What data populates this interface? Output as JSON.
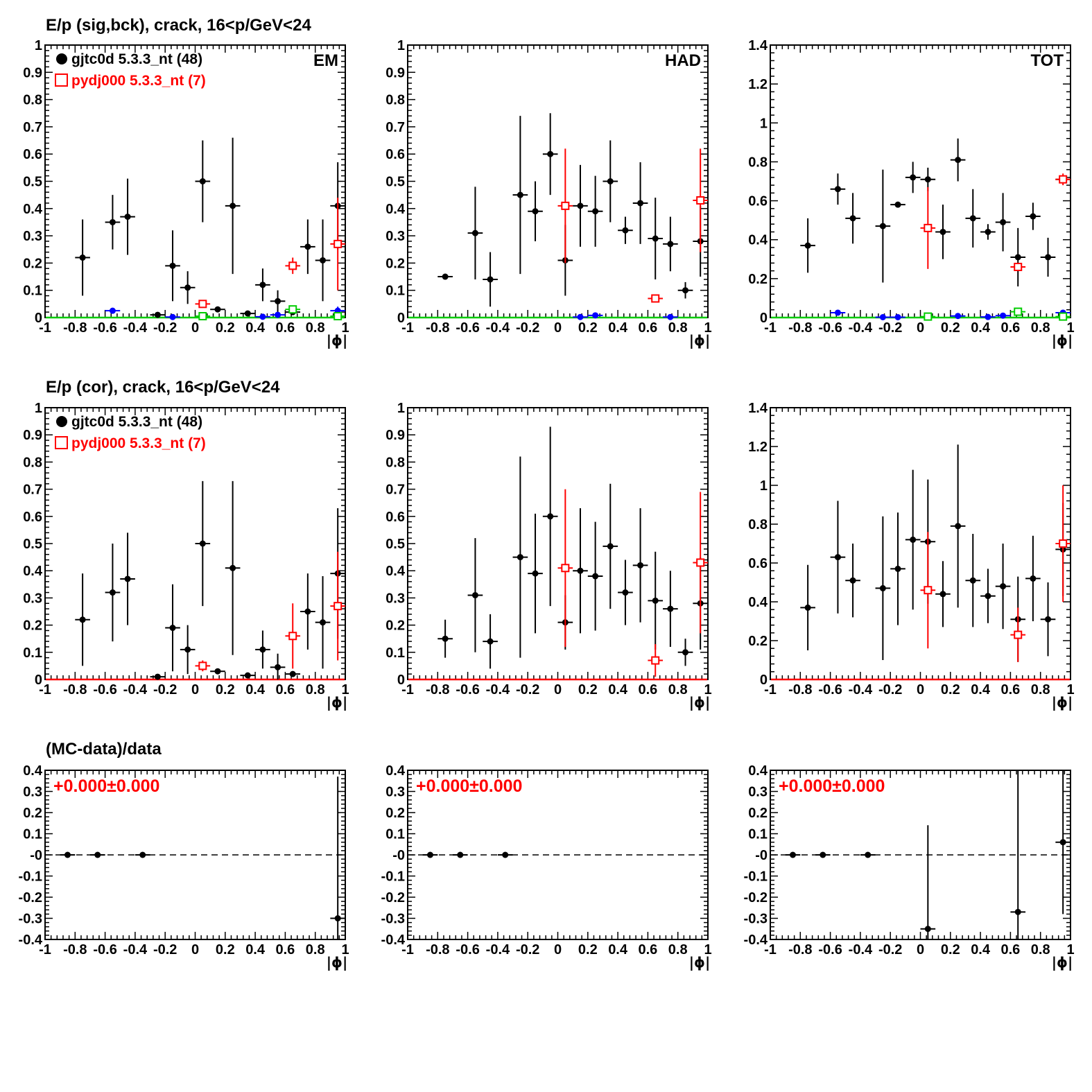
{
  "colors": {
    "data": "#000000",
    "mc": "#ff0000",
    "blue": "#0000ff",
    "green": "#00cc00"
  },
  "row_titles": [
    "E/p (sig,bck), crack, 16<p/GeV<24",
    "E/p (cor), crack, 16<p/GeV<24",
    "(MC-data)/data"
  ],
  "legend": {
    "data_label": "gjtc0d 5.3.3_nt (48)",
    "mc_label": "pydj000 5.3.3_nt (7)"
  },
  "panel_tags": [
    "EM",
    "HAD",
    "TOT"
  ],
  "ratio_texts": [
    "+0.000±0.000",
    "+0.000±0.000",
    "+0.000±0.000"
  ],
  "chart_data": [
    {
      "type": "scatter",
      "row": 0,
      "col": 0,
      "xlabel": "|ϕ|",
      "xlim": [
        -1,
        1
      ],
      "ylim": [
        0,
        1
      ],
      "yticks": [
        0,
        0.1,
        0.2,
        0.3,
        0.4,
        0.5,
        0.6,
        0.7,
        0.8,
        0.9,
        1
      ],
      "tag": "EM",
      "legend": true,
      "series": [
        {
          "name": "gjtc0d 5.3.3_nt (48)",
          "color": "#000000",
          "marker": "dot",
          "points": [
            [
              -0.75,
              0.22,
              0.14
            ],
            [
              -0.55,
              0.35,
              0.1
            ],
            [
              -0.45,
              0.37,
              0.14
            ],
            [
              -0.25,
              0.01,
              0
            ],
            [
              -0.15,
              0.19,
              0.13
            ],
            [
              -0.05,
              0.11,
              0.06
            ],
            [
              0.05,
              0.5,
              0.15
            ],
            [
              0.15,
              0.03,
              0.01
            ],
            [
              0.25,
              0.41,
              0.25
            ],
            [
              0.35,
              0.015,
              0
            ],
            [
              0.45,
              0.12,
              0.06
            ],
            [
              0.55,
              0.06,
              0.04
            ],
            [
              0.65,
              0.02,
              0
            ],
            [
              0.75,
              0.26,
              0.1
            ],
            [
              0.85,
              0.21,
              0.15
            ],
            [
              0.95,
              0.41,
              0.16
            ]
          ]
        },
        {
          "name": "pydj000 5.3.3_nt (7)",
          "color": "#ff0000",
          "marker": "square",
          "points": [
            [
              0.05,
              0.05,
              0
            ],
            [
              0.65,
              0.19,
              0.03
            ],
            [
              0.95,
              0.27,
              0.17
            ]
          ]
        },
        {
          "color": "#0000ff",
          "marker": "dot",
          "points": [
            [
              -0.55,
              0.025,
              0.01
            ],
            [
              -0.15,
              0.002,
              0
            ],
            [
              0.45,
              0.003,
              0
            ],
            [
              0.55,
              0.01,
              0
            ],
            [
              0.95,
              0.025,
              0.015
            ]
          ]
        },
        {
          "color": "#00cc00",
          "marker": "square",
          "points": [
            [
              0.05,
              0.005,
              0
            ],
            [
              0.65,
              0.03,
              0.01
            ],
            [
              0.95,
              0.005,
              0
            ]
          ]
        }
      ]
    },
    {
      "type": "scatter",
      "row": 0,
      "col": 1,
      "xlabel": "|ϕ|",
      "xlim": [
        -1,
        1
      ],
      "ylim": [
        0,
        1
      ],
      "yticks": [
        0,
        0.1,
        0.2,
        0.3,
        0.4,
        0.5,
        0.6,
        0.7,
        0.8,
        0.9,
        1
      ],
      "tag": "HAD",
      "legend": false,
      "series": [
        {
          "color": "#000000",
          "marker": "dot",
          "points": [
            [
              -0.75,
              0.15,
              0
            ],
            [
              -0.55,
              0.31,
              0.17
            ],
            [
              -0.45,
              0.14,
              0.1
            ],
            [
              -0.25,
              0.45,
              0.29
            ],
            [
              -0.15,
              0.39,
              0.11
            ],
            [
              -0.05,
              0.6,
              0.15
            ],
            [
              0.05,
              0.21,
              0.13
            ],
            [
              0.15,
              0.41,
              0.15
            ],
            [
              0.25,
              0.39,
              0.13
            ],
            [
              0.35,
              0.5,
              0.15
            ],
            [
              0.45,
              0.32,
              0.05
            ],
            [
              0.55,
              0.42,
              0.15
            ],
            [
              0.65,
              0.29,
              0.15
            ],
            [
              0.75,
              0.27,
              0.1
            ],
            [
              0.85,
              0.1,
              0.03
            ],
            [
              0.95,
              0.28,
              0.13
            ]
          ]
        },
        {
          "color": "#ff0000",
          "marker": "square",
          "points": [
            [
              0.05,
              0.41,
              0.21
            ],
            [
              0.65,
              0.07,
              0.01
            ],
            [
              0.95,
              0.43,
              0.19
            ]
          ]
        },
        {
          "color": "#0000ff",
          "marker": "dot",
          "points": [
            [
              0.15,
              0.002,
              0
            ],
            [
              0.25,
              0.008,
              0
            ],
            [
              0.75,
              0.002,
              0
            ]
          ]
        }
      ]
    },
    {
      "type": "scatter",
      "row": 0,
      "col": 2,
      "xlabel": "|ϕ|",
      "xlim": [
        -1,
        1
      ],
      "ylim": [
        0,
        1.4
      ],
      "yticks": [
        0,
        0.2,
        0.4,
        0.6,
        0.8,
        1,
        1.2,
        1.4
      ],
      "tag": "TOT",
      "legend": false,
      "series": [
        {
          "color": "#000000",
          "marker": "dot",
          "points": [
            [
              -0.75,
              0.37,
              0.14
            ],
            [
              -0.55,
              0.66,
              0.08
            ],
            [
              -0.45,
              0.51,
              0.13
            ],
            [
              -0.25,
              0.47,
              0.29
            ],
            [
              -0.15,
              0.58,
              0
            ],
            [
              -0.05,
              0.72,
              0.08
            ],
            [
              0.05,
              0.71,
              0.06
            ],
            [
              0.15,
              0.44,
              0.14
            ],
            [
              0.25,
              0.81,
              0.11
            ],
            [
              0.35,
              0.51,
              0.15
            ],
            [
              0.45,
              0.44,
              0.04
            ],
            [
              0.55,
              0.49,
              0.15
            ],
            [
              0.65,
              0.31,
              0.15
            ],
            [
              0.75,
              0.52,
              0.07
            ],
            [
              0.85,
              0.31,
              0.1
            ],
            [
              0.95,
              0.71,
              0.02
            ]
          ]
        },
        {
          "color": "#ff0000",
          "marker": "square",
          "points": [
            [
              0.05,
              0.46,
              0.21
            ],
            [
              0.65,
              0.26,
              0.02
            ],
            [
              0.95,
              0.71,
              0.03
            ]
          ]
        },
        {
          "color": "#0000ff",
          "marker": "dot",
          "points": [
            [
              -0.55,
              0.025,
              0
            ],
            [
              -0.25,
              0.002,
              0
            ],
            [
              -0.15,
              0.002,
              0
            ],
            [
              0.25,
              0.008,
              0
            ],
            [
              0.45,
              0.003,
              0
            ],
            [
              0.55,
              0.01,
              0
            ],
            [
              0.95,
              0.025,
              0.01
            ]
          ]
        },
        {
          "color": "#00cc00",
          "marker": "square",
          "points": [
            [
              0.05,
              0.005,
              0
            ],
            [
              0.65,
              0.03,
              0
            ],
            [
              0.95,
              0.005,
              0
            ]
          ]
        }
      ]
    },
    {
      "type": "scatter",
      "row": 1,
      "col": 0,
      "xlabel": "|ϕ|",
      "xlim": [
        -1,
        1
      ],
      "ylim": [
        0,
        1
      ],
      "yticks": [
        0,
        0.1,
        0.2,
        0.3,
        0.4,
        0.5,
        0.6,
        0.7,
        0.8,
        0.9,
        1
      ],
      "tag": "",
      "legend": true,
      "series": [
        {
          "name": "gjtc0d 5.3.3_nt (48)",
          "color": "#000000",
          "marker": "dot",
          "points": [
            [
              -0.75,
              0.22,
              0.17
            ],
            [
              -0.55,
              0.32,
              0.18
            ],
            [
              -0.45,
              0.37,
              0.17
            ],
            [
              -0.25,
              0.01,
              0
            ],
            [
              -0.15,
              0.19,
              0.16
            ],
            [
              -0.05,
              0.11,
              0.09
            ],
            [
              0.05,
              0.5,
              0.23
            ],
            [
              0.15,
              0.03,
              0.01
            ],
            [
              0.25,
              0.41,
              0.32
            ],
            [
              0.35,
              0.015,
              0
            ],
            [
              0.45,
              0.11,
              0.07
            ],
            [
              0.55,
              0.045,
              0.05
            ],
            [
              0.65,
              0.02,
              0
            ],
            [
              0.75,
              0.25,
              0.14
            ],
            [
              0.85,
              0.21,
              0.17
            ],
            [
              0.95,
              0.39,
              0.24
            ]
          ]
        },
        {
          "name": "pydj000 5.3.3_nt (7)",
          "color": "#ff0000",
          "marker": "square",
          "points": [
            [
              0.05,
              0.05,
              0.02
            ],
            [
              0.65,
              0.16,
              0.12
            ],
            [
              0.95,
              0.27,
              0.2
            ]
          ]
        }
      ],
      "baseline": "#ff0000"
    },
    {
      "type": "scatter",
      "row": 1,
      "col": 1,
      "xlabel": "|ϕ|",
      "xlim": [
        -1,
        1
      ],
      "ylim": [
        0,
        1
      ],
      "yticks": [
        0,
        0.1,
        0.2,
        0.3,
        0.4,
        0.5,
        0.6,
        0.7,
        0.8,
        0.9,
        1
      ],
      "tag": "",
      "legend": false,
      "series": [
        {
          "color": "#000000",
          "marker": "dot",
          "points": [
            [
              -0.75,
              0.15,
              0.07
            ],
            [
              -0.55,
              0.31,
              0.21
            ],
            [
              -0.45,
              0.14,
              0.1
            ],
            [
              -0.25,
              0.45,
              0.37
            ],
            [
              -0.15,
              0.39,
              0.22
            ],
            [
              -0.05,
              0.6,
              0.33
            ],
            [
              0.05,
              0.21,
              0.1
            ],
            [
              0.15,
              0.4,
              0.23
            ],
            [
              0.25,
              0.38,
              0.2
            ],
            [
              0.35,
              0.49,
              0.23
            ],
            [
              0.45,
              0.32,
              0.12
            ],
            [
              0.55,
              0.42,
              0.21
            ],
            [
              0.65,
              0.29,
              0.18
            ],
            [
              0.75,
              0.26,
              0.14
            ],
            [
              0.85,
              0.1,
              0.05
            ],
            [
              0.95,
              0.28,
              0.17
            ]
          ]
        },
        {
          "color": "#ff0000",
          "marker": "square",
          "points": [
            [
              0.05,
              0.41,
              0.29
            ],
            [
              0.65,
              0.07,
              0.06
            ],
            [
              0.95,
              0.43,
              0.26
            ]
          ]
        }
      ],
      "baseline": "#ff0000"
    },
    {
      "type": "scatter",
      "row": 1,
      "col": 2,
      "xlabel": "|ϕ|",
      "xlim": [
        -1,
        1
      ],
      "ylim": [
        0,
        1.4
      ],
      "yticks": [
        0,
        0.2,
        0.4,
        0.6,
        0.8,
        1,
        1.2,
        1.4
      ],
      "tag": "",
      "legend": false,
      "series": [
        {
          "color": "#000000",
          "marker": "dot",
          "points": [
            [
              -0.75,
              0.37,
              0.22
            ],
            [
              -0.55,
              0.63,
              0.29
            ],
            [
              -0.45,
              0.51,
              0.19
            ],
            [
              -0.25,
              0.47,
              0.37
            ],
            [
              -0.15,
              0.57,
              0.29
            ],
            [
              -0.05,
              0.72,
              0.36
            ],
            [
              0.05,
              0.71,
              0.32
            ],
            [
              0.15,
              0.44,
              0.17
            ],
            [
              0.25,
              0.79,
              0.42
            ],
            [
              0.35,
              0.51,
              0.24
            ],
            [
              0.45,
              0.43,
              0.14
            ],
            [
              0.55,
              0.48,
              0.22
            ],
            [
              0.65,
              0.31,
              0.22
            ],
            [
              0.75,
              0.52,
              0.22
            ],
            [
              0.85,
              0.31,
              0.19
            ],
            [
              0.95,
              0.67,
              0.24
            ]
          ]
        },
        {
          "color": "#ff0000",
          "marker": "square",
          "points": [
            [
              0.05,
              0.46,
              0.3
            ],
            [
              0.65,
              0.23,
              0.14
            ],
            [
              0.95,
              0.7,
              0.3
            ]
          ]
        }
      ],
      "baseline": "#ff0000"
    },
    {
      "type": "scatter",
      "row": 2,
      "col": 0,
      "xlabel": "|ϕ|",
      "xlim": [
        -1,
        1
      ],
      "ylim": [
        -0.4,
        0.4
      ],
      "yticks": [
        -0.4,
        -0.3,
        -0.2,
        -0.1,
        0,
        0.1,
        0.2,
        0.3,
        0.4
      ],
      "tag": "",
      "legend": false,
      "dashed_zero": true,
      "series": [
        {
          "color": "#000000",
          "marker": "dot",
          "points": [
            [
              -0.85,
              0,
              0
            ],
            [
              -0.65,
              0,
              0
            ],
            [
              -0.35,
              0,
              0
            ],
            [
              0.95,
              -0.3,
              0.67
            ]
          ]
        }
      ]
    },
    {
      "type": "scatter",
      "row": 2,
      "col": 1,
      "xlabel": "|ϕ|",
      "xlim": [
        -1,
        1
      ],
      "ylim": [
        -0.4,
        0.4
      ],
      "yticks": [
        -0.4,
        -0.3,
        -0.2,
        -0.1,
        0,
        0.1,
        0.2,
        0.3,
        0.4
      ],
      "tag": "",
      "legend": false,
      "dashed_zero": true,
      "series": [
        {
          "color": "#000000",
          "marker": "dot",
          "points": [
            [
              -0.85,
              0,
              0
            ],
            [
              -0.65,
              0,
              0
            ],
            [
              -0.35,
              0,
              0
            ]
          ]
        }
      ]
    },
    {
      "type": "scatter",
      "row": 2,
      "col": 2,
      "xlabel": "|ϕ|",
      "xlim": [
        -1,
        1
      ],
      "ylim": [
        -0.4,
        0.4
      ],
      "yticks": [
        -0.4,
        -0.3,
        -0.2,
        -0.1,
        0,
        0.1,
        0.2,
        0.3,
        0.4
      ],
      "tag": "",
      "legend": false,
      "dashed_zero": true,
      "series": [
        {
          "color": "#000000",
          "marker": "dot",
          "points": [
            [
              -0.85,
              0,
              0
            ],
            [
              -0.65,
              0,
              0
            ],
            [
              -0.35,
              0,
              0
            ],
            [
              0.05,
              -0.35,
              0.49
            ],
            [
              0.65,
              -0.27,
              0.67
            ],
            [
              0.95,
              0.06,
              0.34
            ]
          ]
        }
      ]
    }
  ]
}
